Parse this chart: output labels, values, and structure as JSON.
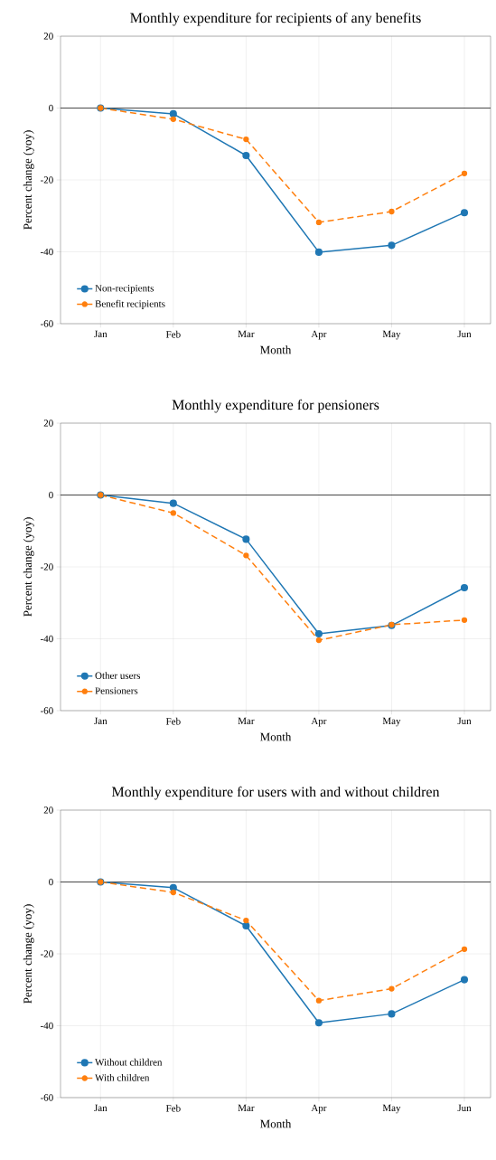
{
  "chart_data": [
    {
      "type": "line",
      "title": "Monthly expenditure for recipients of any benefits",
      "xlabel": "Month",
      "ylabel": "Percent change (yoy)",
      "categories": [
        "Jan",
        "Feb",
        "Mar",
        "Apr",
        "May",
        "Jun"
      ],
      "ylim": [
        -60,
        20
      ],
      "yticks": [
        -60,
        -40,
        -20,
        0,
        20
      ],
      "grid": true,
      "legend": "bottom left",
      "marker": "circle",
      "ref_lines": [
        {
          "axis": "y",
          "value": 0,
          "color": "#333333"
        }
      ],
      "series": [
        {
          "name": "Non-recipients",
          "color": "#1f77b4",
          "line_style": "solid",
          "values": [
            0,
            -1.6,
            -13.2,
            -40.1,
            -38.2,
            -29.1
          ]
        },
        {
          "name": "Benefit recipients",
          "color": "#ff7f0e",
          "line_style": "dashed",
          "values": [
            0,
            -3.1,
            -8.7,
            -31.8,
            -28.8,
            -18.2
          ]
        }
      ]
    },
    {
      "type": "line",
      "title": "Monthly expenditure for pensioners",
      "xlabel": "Month",
      "ylabel": "Percent change (yoy)",
      "categories": [
        "Jan",
        "Feb",
        "Mar",
        "Apr",
        "May",
        "Jun"
      ],
      "ylim": [
        -60,
        20
      ],
      "yticks": [
        -60,
        -40,
        -20,
        0,
        20
      ],
      "grid": true,
      "legend": "bottom left",
      "marker": "circle",
      "ref_lines": [
        {
          "axis": "y",
          "value": 0,
          "color": "#333333"
        }
      ],
      "series": [
        {
          "name": "Other users",
          "color": "#1f77b4",
          "line_style": "solid",
          "values": [
            0,
            -2.3,
            -12.3,
            -38.6,
            -36.3,
            -25.8
          ]
        },
        {
          "name": "Pensioners",
          "color": "#ff7f0e",
          "line_style": "dashed",
          "values": [
            0,
            -5.0,
            -16.8,
            -40.4,
            -36.1,
            -34.8
          ]
        }
      ]
    },
    {
      "type": "line",
      "title": "Monthly expenditure for users with and without children",
      "xlabel": "Month",
      "ylabel": "Percent change (yoy)",
      "categories": [
        "Jan",
        "Feb",
        "Mar",
        "Apr",
        "May",
        "Jun"
      ],
      "ylim": [
        -60,
        20
      ],
      "yticks": [
        -60,
        -40,
        -20,
        0,
        20
      ],
      "grid": true,
      "legend": "bottom left",
      "marker": "circle",
      "ref_lines": [
        {
          "axis": "y",
          "value": 0,
          "color": "#333333"
        }
      ],
      "series": [
        {
          "name": "Without children",
          "color": "#1f77b4",
          "line_style": "solid",
          "values": [
            0,
            -1.6,
            -12.2,
            -39.2,
            -36.7,
            -27.2
          ]
        },
        {
          "name": "With children",
          "color": "#ff7f0e",
          "line_style": "dashed",
          "values": [
            0,
            -2.9,
            -10.7,
            -33.0,
            -29.7,
            -18.7
          ]
        }
      ]
    }
  ]
}
